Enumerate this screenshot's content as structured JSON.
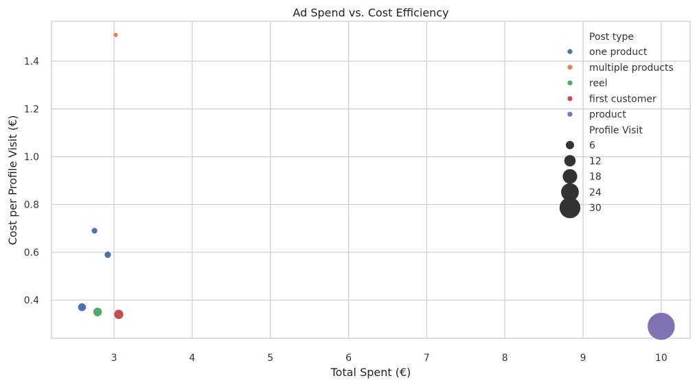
{
  "chart_data": {
    "type": "scatter",
    "title": "Ad Spend vs. Cost Efficiency",
    "xlabel": "Total Spent (€)",
    "ylabel": "Cost per Profile Visit (€)",
    "xlim": [
      2.2,
      10.37
    ],
    "ylim": [
      0.24,
      1.567
    ],
    "xticks": [
      3,
      4,
      5,
      6,
      7,
      8,
      9,
      10
    ],
    "yticks": [
      0.4,
      0.6,
      0.8,
      1.0,
      1.2,
      1.4
    ],
    "grid": true,
    "legend_position": "top-right",
    "hue_title": "Post type",
    "size_title": "Profile Visit",
    "series": [
      {
        "name": "one product",
        "color": "#4c72b0",
        "points": [
          {
            "x": 2.75,
            "y": 0.69,
            "size": 4
          },
          {
            "x": 2.92,
            "y": 0.59,
            "size": 5
          },
          {
            "x": 2.59,
            "y": 0.37,
            "size": 7
          }
        ]
      },
      {
        "name": "multiple products",
        "color": "#dd8452",
        "points": [
          {
            "x": 3.02,
            "y": 1.51,
            "size": 2
          }
        ]
      },
      {
        "name": "reel",
        "color": "#55a868",
        "points": [
          {
            "x": 2.79,
            "y": 0.35,
            "size": 8
          }
        ]
      },
      {
        "name": "first customer",
        "color": "#c44e52",
        "points": [
          {
            "x": 3.06,
            "y": 0.34,
            "size": 9
          }
        ]
      },
      {
        "name": "product",
        "color": "#8172b3",
        "points": [
          {
            "x": 10.0,
            "y": 0.29,
            "size": 34
          }
        ]
      }
    ],
    "size_legend": [
      6,
      12,
      18,
      24,
      30
    ],
    "size_legend_color": "#333333"
  }
}
